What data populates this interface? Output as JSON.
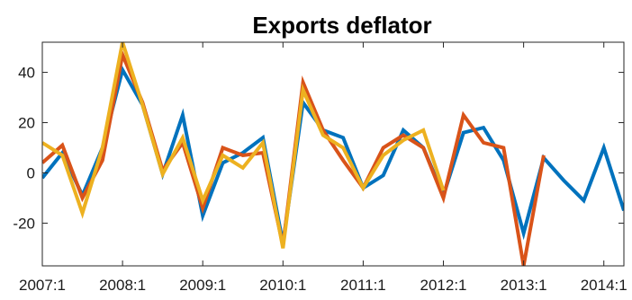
{
  "chart_data": {
    "type": "line",
    "title": "Exports deflator",
    "xlabel": "",
    "ylabel": "",
    "x_tick_labels": [
      "2007:1",
      "2008:1",
      "2009:1",
      "2010:1",
      "2011:1",
      "2012:1",
      "2013:1",
      "2014:1"
    ],
    "x_tick_quarters": [
      0,
      4,
      8,
      12,
      16,
      20,
      24,
      28
    ],
    "xlim": [
      0,
      29
    ],
    "y_ticks": [
      -20,
      0,
      20,
      40
    ],
    "ylim": [
      -37,
      52
    ],
    "grid": false,
    "series": [
      {
        "color": "#0072BD",
        "x": [
          0,
          1,
          2,
          3,
          4,
          5,
          6,
          7,
          8,
          9,
          10,
          11,
          12,
          13,
          14,
          15,
          16,
          17,
          18,
          19,
          20,
          21,
          22,
          23,
          24,
          25,
          26,
          27,
          28,
          29
        ],
        "values": [
          -2,
          8,
          -9,
          10,
          41,
          27,
          -0.5,
          23,
          -17,
          4,
          8,
          14,
          -28,
          28,
          17,
          14,
          -6,
          -1,
          17,
          10,
          -9,
          16,
          18,
          5,
          -24,
          6,
          -3,
          -11,
          10,
          -15
        ]
      },
      {
        "color": "#D95319",
        "x": [
          0,
          1,
          2,
          3,
          4,
          5,
          6,
          7,
          8,
          9,
          10,
          11,
          12,
          13,
          14,
          15,
          16,
          17,
          18,
          19,
          20,
          21,
          22,
          23,
          24,
          25
        ],
        "values": [
          4,
          11,
          -10,
          5,
          47,
          28,
          1,
          12,
          -14,
          10,
          7,
          8,
          -29,
          36,
          17,
          5,
          -6,
          10,
          15,
          10,
          -10,
          23,
          12,
          10,
          -37,
          7
        ]
      },
      {
        "color": "#EDB120",
        "x": [
          0,
          1,
          2,
          3,
          4,
          5,
          6,
          7,
          8,
          9,
          10,
          11,
          12,
          13,
          14,
          15,
          16,
          17,
          18,
          19,
          20
        ],
        "values": [
          12,
          7,
          -16,
          10,
          52,
          27,
          -0.5,
          14,
          -11,
          7,
          2,
          12,
          -30,
          33,
          15,
          10,
          -6,
          7,
          13,
          17,
          -7
        ]
      }
    ]
  }
}
